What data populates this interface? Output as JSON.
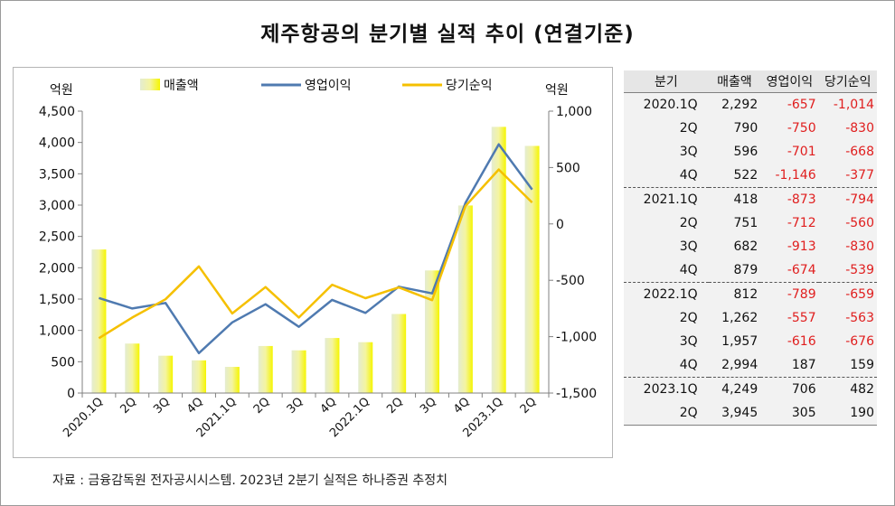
{
  "title": "제주항공의 분기별 실적 추이 (연결기준)",
  "footer": "자료 : 금융감독원 전자공시시스템. 2023년 2분기 실적은 하나증권 추정치",
  "chart_data": {
    "type": "bar",
    "categories": [
      "2020.1Q",
      "2Q",
      "3Q",
      "4Q",
      "2021.1Q",
      "2Q",
      "3Q",
      "4Q",
      "2022.1Q",
      "2Q",
      "3Q",
      "4Q",
      "2023.1Q",
      "2Q"
    ],
    "left_axis": {
      "unit": "억원",
      "ylim": [
        0,
        4500
      ],
      "ticks": [
        "0",
        "500",
        "1,000",
        "1,500",
        "2,000",
        "2,500",
        "3,000",
        "3,500",
        "4,000",
        "4,500"
      ],
      "tick_values": [
        0,
        500,
        1000,
        1500,
        2000,
        2500,
        3000,
        3500,
        4000,
        4500
      ]
    },
    "right_axis": {
      "unit": "억원",
      "ylim": [
        -1500,
        1000
      ],
      "ticks": [
        "-1,500",
        "-1,000",
        "-500",
        "0",
        "500",
        "1,000"
      ],
      "tick_values": [
        -1500,
        -1000,
        -500,
        0,
        500,
        1000
      ]
    },
    "series": [
      {
        "name": "매출액",
        "type": "bar",
        "axis": "left",
        "values": [
          2292,
          790,
          596,
          522,
          418,
          751,
          682,
          879,
          812,
          1262,
          1957,
          2994,
          4249,
          3945
        ]
      },
      {
        "name": "영업이익",
        "type": "line",
        "axis": "right",
        "values": [
          -657,
          -750,
          -701,
          -1146,
          -873,
          -712,
          -913,
          -674,
          -789,
          -557,
          -616,
          187,
          706,
          305
        ]
      },
      {
        "name": "당기순익",
        "type": "line",
        "axis": "right",
        "values": [
          -1014,
          -830,
          -668,
          -377,
          -794,
          -560,
          -830,
          -539,
          -659,
          -563,
          -676,
          159,
          482,
          190
        ]
      }
    ],
    "legend": "top",
    "grid": false
  },
  "colors": {
    "bar": "#f5f500",
    "operating_line": "#4f7ab0",
    "net_line": "#f5c000",
    "negative_text": "#e01e1e"
  },
  "table": {
    "headers": [
      "분기",
      "매출액",
      "영업이익",
      "당기순익"
    ],
    "rows": [
      [
        "2020.1Q",
        "2,292",
        "-657",
        "-1,014"
      ],
      [
        "2Q",
        "790",
        "-750",
        "-830"
      ],
      [
        "3Q",
        "596",
        "-701",
        "-668"
      ],
      [
        "4Q",
        "522",
        "-1,146",
        "-377"
      ],
      [
        "2021.1Q",
        "418",
        "-873",
        "-794"
      ],
      [
        "2Q",
        "751",
        "-712",
        "-560"
      ],
      [
        "3Q",
        "682",
        "-913",
        "-830"
      ],
      [
        "4Q",
        "879",
        "-674",
        "-539"
      ],
      [
        "2022.1Q",
        "812",
        "-789",
        "-659"
      ],
      [
        "2Q",
        "1,262",
        "-557",
        "-563"
      ],
      [
        "3Q",
        "1,957",
        "-616",
        "-676"
      ],
      [
        "4Q",
        "2,994",
        "187",
        "159"
      ],
      [
        "2023.1Q",
        "4,249",
        "706",
        "482"
      ],
      [
        "2Q",
        "3,945",
        "305",
        "190"
      ]
    ]
  }
}
